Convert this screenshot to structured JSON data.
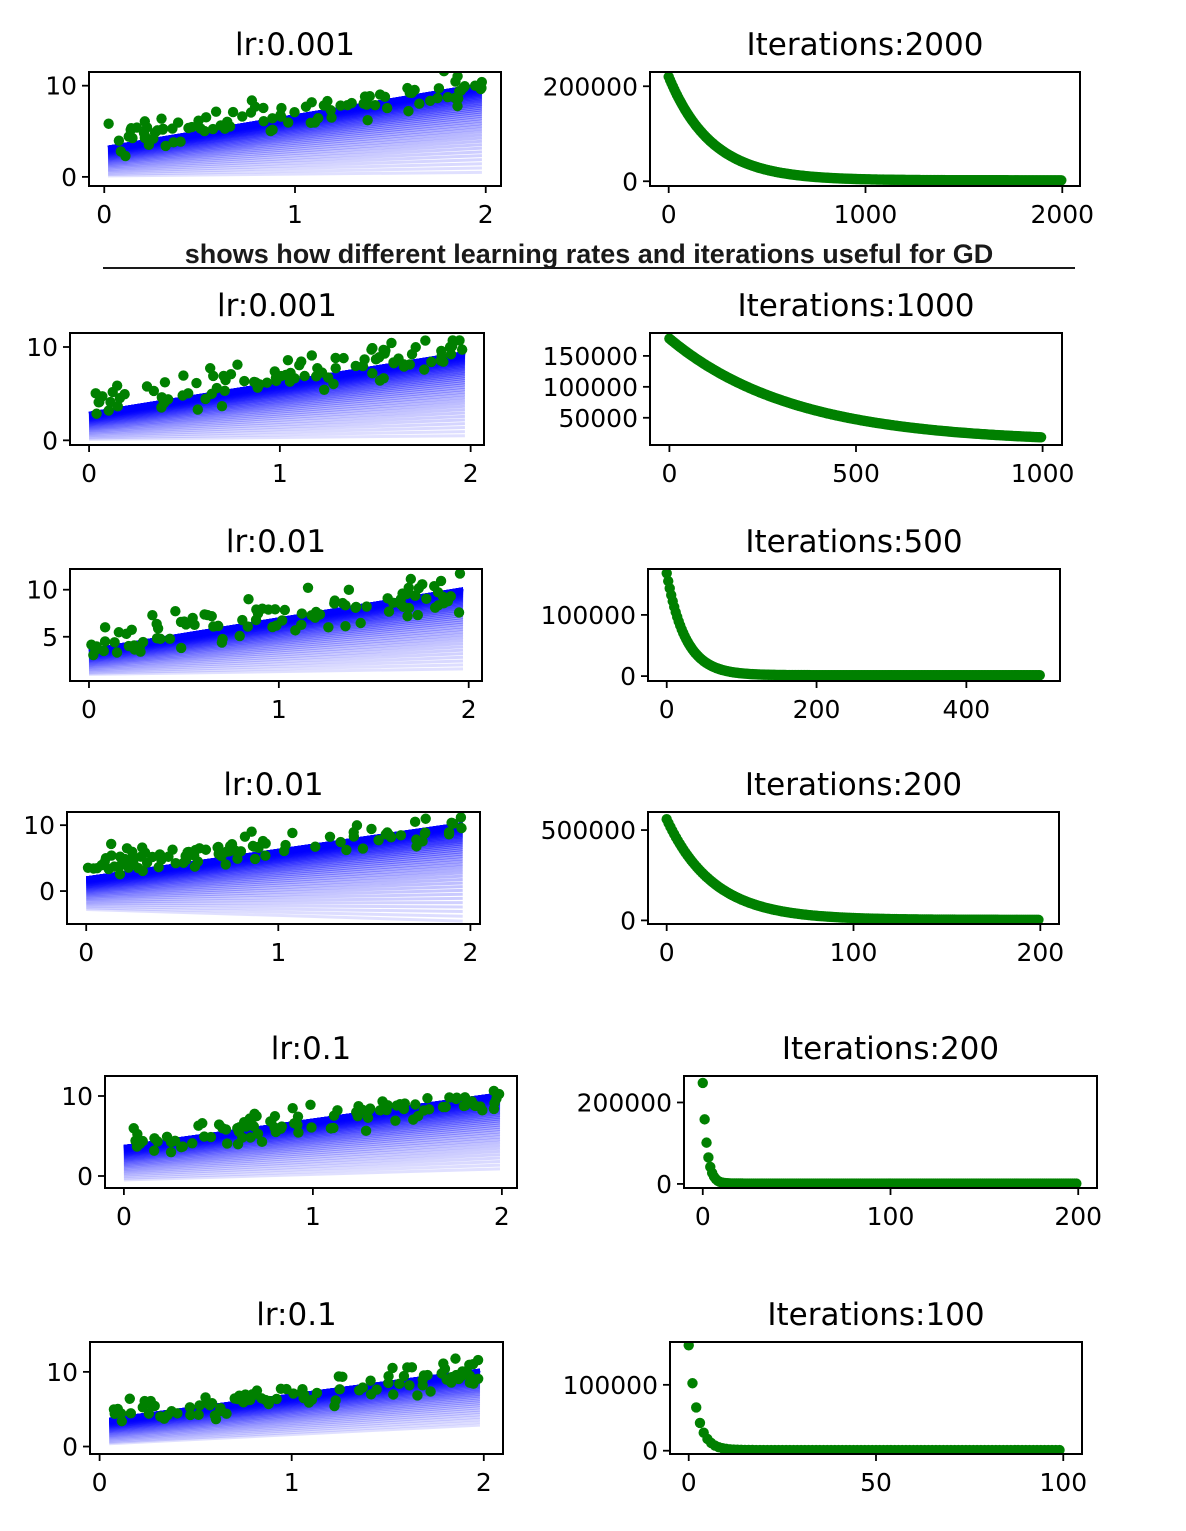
{
  "caption": "shows how different learning rates and iterations useful for GD",
  "colors": {
    "points": "#008000",
    "fit_line": "#0000ff",
    "cost": "#008000"
  },
  "chart_data": [
    {
      "type": "scatter",
      "title": "lr:0.001",
      "xlim": [
        -0.08,
        2.08
      ],
      "ylim": [
        -1,
        11.5
      ],
      "xticks": [
        0,
        1,
        2
      ],
      "yticks": [
        0,
        10
      ],
      "points": {
        "x_range": [
          0.02,
          1.98
        ],
        "intercept": 4,
        "slope": 3,
        "noise": 1,
        "n": 100
      },
      "fit_lines": {
        "count": 2000,
        "final_intercept": 3.2,
        "final_slope": 3.5,
        "start_intercept": 0.1,
        "start_slope": 0.2
      }
    },
    {
      "type": "scatter",
      "title": "Iterations:2000",
      "xlim": [
        -95,
        2090
      ],
      "ylim": [
        -10000,
        230000
      ],
      "xticks": [
        0,
        1000,
        2000
      ],
      "yticks": [
        0,
        200000
      ],
      "curve": {
        "n": 2000,
        "start": 220000,
        "end": 2000,
        "decay": 0.0046
      }
    },
    {
      "type": "scatter",
      "title": "lr:0.001",
      "xlim": [
        -0.1,
        2.07
      ],
      "ylim": [
        -0.5,
        11.5
      ],
      "xticks": [
        0,
        1,
        2
      ],
      "yticks": [
        0,
        10
      ],
      "points": {
        "x_range": [
          0.0,
          1.97
        ],
        "intercept": 4,
        "slope": 3,
        "noise": 1,
        "n": 100
      },
      "fit_lines": {
        "count": 1000,
        "final_intercept": 2.9,
        "final_slope": 3.3,
        "start_intercept": 0.1,
        "start_slope": 0.2
      }
    },
    {
      "type": "scatter",
      "title": "Iterations:1000",
      "xlim": [
        -52,
        1052
      ],
      "ylim": [
        6000,
        187000
      ],
      "xticks": [
        0,
        500,
        1000
      ],
      "yticks": [
        50000,
        100000,
        150000
      ],
      "curve": {
        "n": 1000,
        "start": 178000,
        "end": 10000,
        "decay": 0.003
      }
    },
    {
      "type": "scatter",
      "title": "lr:0.01",
      "xlim": [
        -0.1,
        2.07
      ],
      "ylim": [
        0.3,
        12.2
      ],
      "xticks": [
        0,
        1,
        2
      ],
      "yticks": [
        5,
        10
      ],
      "points": {
        "x_range": [
          0.0,
          1.97
        ],
        "intercept": 4,
        "slope": 3,
        "noise": 1,
        "n": 100
      },
      "fit_lines": {
        "count": 500,
        "final_intercept": 3.6,
        "final_slope": 3.3,
        "start_intercept": 1.0,
        "start_slope": 0.3
      }
    },
    {
      "type": "scatter",
      "title": "Iterations:500",
      "xlim": [
        -25,
        525
      ],
      "ylim": [
        -8000,
        175000
      ],
      "xticks": [
        0,
        200,
        400
      ],
      "yticks": [
        0,
        100000
      ],
      "curve": {
        "n": 500,
        "start": 168000,
        "end": 1500,
        "decay": 0.04
      }
    },
    {
      "type": "scatter",
      "title": "lr:0.01",
      "xlim": [
        -0.1,
        2.05
      ],
      "ylim": [
        -5,
        12
      ],
      "xticks": [
        0,
        1,
        2
      ],
      "yticks": [
        0,
        10
      ],
      "points": {
        "x_range": [
          0.0,
          1.96
        ],
        "intercept": 4,
        "slope": 3,
        "noise": 1,
        "n": 100
      },
      "fit_lines": {
        "count": 200,
        "final_intercept": 2.0,
        "final_slope": 4.2,
        "start_intercept": -2.8,
        "start_slope": -0.9
      }
    },
    {
      "type": "scatter",
      "title": "Iterations:200",
      "xlim": [
        -10,
        210
      ],
      "ylim": [
        -20000,
        600000
      ],
      "xticks": [
        0,
        100,
        200
      ],
      "yticks": [
        0,
        500000
      ],
      "curve": {
        "n": 200,
        "start": 560000,
        "end": 3000,
        "decay": 0.04
      }
    },
    {
      "type": "scatter",
      "title": "lr:0.1",
      "xlim": [
        -0.1,
        2.08
      ],
      "ylim": [
        -1.5,
        12.5
      ],
      "xticks": [
        0,
        1,
        2
      ],
      "yticks": [
        0,
        10
      ],
      "points": {
        "x_range": [
          0.0,
          1.99
        ],
        "intercept": 4,
        "slope": 3,
        "noise": 1,
        "n": 100
      },
      "fit_lines": {
        "count": 200,
        "final_intercept": 3.7,
        "final_slope": 3.3,
        "start_intercept": -0.5,
        "start_slope": 0.7
      }
    },
    {
      "type": "scatter",
      "title": "Iterations:200",
      "xlim": [
        -10,
        210
      ],
      "ylim": [
        -10000,
        265000
      ],
      "xticks": [
        0,
        100,
        200
      ],
      "yticks": [
        0,
        200000
      ],
      "curve": {
        "n": 200,
        "start": 248000,
        "end": 1000,
        "decay": 0.45
      }
    },
    {
      "type": "scatter",
      "title": "lr:0.1",
      "xlim": [
        -0.05,
        2.1
      ],
      "ylim": [
        -1,
        14
      ],
      "xticks": [
        0,
        1,
        2
      ],
      "yticks": [
        0,
        10
      ],
      "points": {
        "x_range": [
          0.05,
          1.98
        ],
        "intercept": 4,
        "slope": 3,
        "noise": 1,
        "n": 100
      },
      "fit_lines": {
        "count": 100,
        "final_intercept": 3.5,
        "final_slope": 3.4,
        "start_intercept": 0.3,
        "start_slope": 1.3
      }
    },
    {
      "type": "scatter",
      "title": "Iterations:100",
      "xlim": [
        -5,
        105
      ],
      "ylim": [
        -5000,
        165000
      ],
      "xticks": [
        0,
        50,
        100
      ],
      "yticks": [
        0,
        100000
      ],
      "curve": {
        "n": 100,
        "start": 160000,
        "end": 1000,
        "decay": 0.45
      }
    }
  ]
}
